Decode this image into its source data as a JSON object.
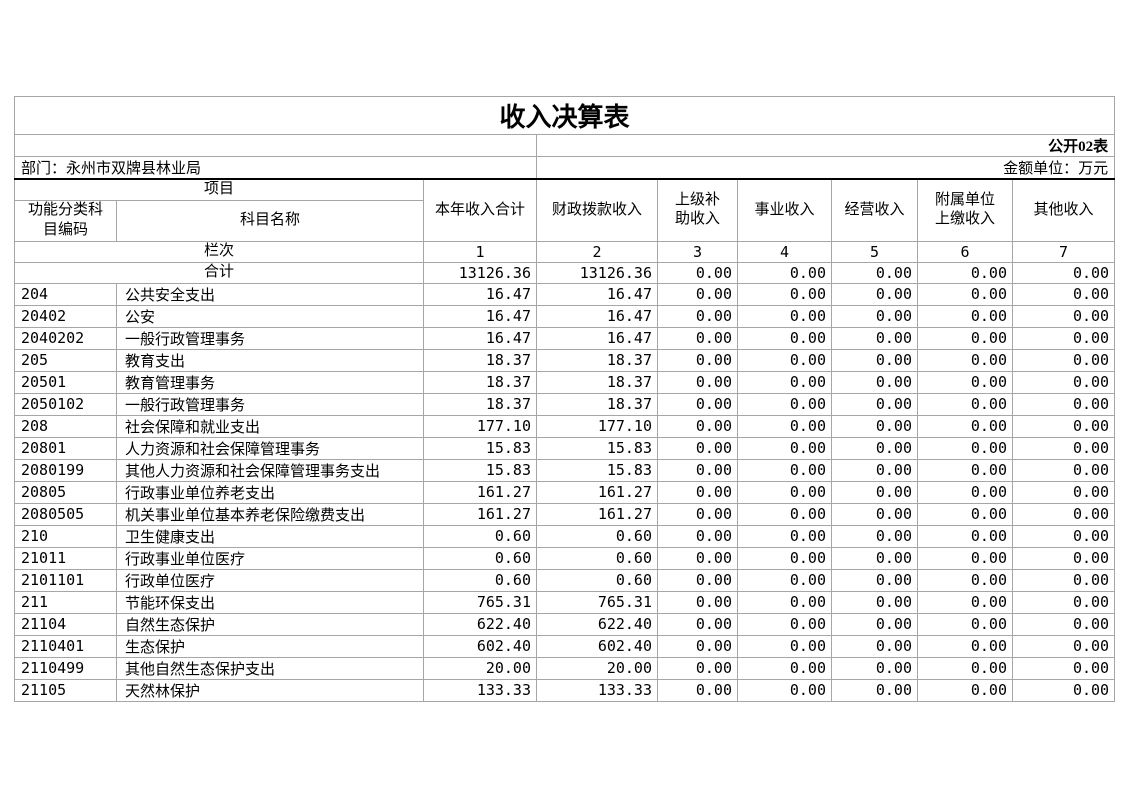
{
  "page": {
    "title": "收入决算表",
    "form_label": "公开02表",
    "department": "部门：永州市双牌县林业局",
    "unit": "金额单位：万元"
  },
  "colors": {
    "grid_line": "#a6a6a6",
    "section_divider": "#000000",
    "text": "#000000",
    "background": "#ffffff"
  },
  "table": {
    "header": {
      "project": "项目",
      "code": "功能分类科\n目编码",
      "subject": "科目名称",
      "columns": [
        "本年收入合计",
        "财政拨款收入",
        "上级补\n助收入",
        "事业收入",
        "经营收入",
        "附属单位\n上缴收入",
        "其他收入"
      ],
      "rank_label": "栏次",
      "rank_numbers": [
        "1",
        "2",
        "3",
        "4",
        "5",
        "6",
        "7"
      ]
    },
    "total": {
      "label": "合计",
      "values": [
        "13126.36",
        "13126.36",
        "0.00",
        "0.00",
        "0.00",
        "0.00",
        "0.00"
      ]
    },
    "rows": [
      {
        "code": "204",
        "name": "公共安全支出",
        "values": [
          "16.47",
          "16.47",
          "0.00",
          "0.00",
          "0.00",
          "0.00",
          "0.00"
        ]
      },
      {
        "code": "20402",
        "name": "公安",
        "values": [
          "16.47",
          "16.47",
          "0.00",
          "0.00",
          "0.00",
          "0.00",
          "0.00"
        ]
      },
      {
        "code": "2040202",
        "name": "一般行政管理事务",
        "values": [
          "16.47",
          "16.47",
          "0.00",
          "0.00",
          "0.00",
          "0.00",
          "0.00"
        ]
      },
      {
        "code": "205",
        "name": "教育支出",
        "values": [
          "18.37",
          "18.37",
          "0.00",
          "0.00",
          "0.00",
          "0.00",
          "0.00"
        ]
      },
      {
        "code": "20501",
        "name": "教育管理事务",
        "values": [
          "18.37",
          "18.37",
          "0.00",
          "0.00",
          "0.00",
          "0.00",
          "0.00"
        ]
      },
      {
        "code": "2050102",
        "name": "一般行政管理事务",
        "values": [
          "18.37",
          "18.37",
          "0.00",
          "0.00",
          "0.00",
          "0.00",
          "0.00"
        ]
      },
      {
        "code": "208",
        "name": "社会保障和就业支出",
        "values": [
          "177.10",
          "177.10",
          "0.00",
          "0.00",
          "0.00",
          "0.00",
          "0.00"
        ]
      },
      {
        "code": "20801",
        "name": "人力资源和社会保障管理事务",
        "values": [
          "15.83",
          "15.83",
          "0.00",
          "0.00",
          "0.00",
          "0.00",
          "0.00"
        ]
      },
      {
        "code": "2080199",
        "name": "其他人力资源和社会保障管理事务支出",
        "values": [
          "15.83",
          "15.83",
          "0.00",
          "0.00",
          "0.00",
          "0.00",
          "0.00"
        ]
      },
      {
        "code": "20805",
        "name": "行政事业单位养老支出",
        "values": [
          "161.27",
          "161.27",
          "0.00",
          "0.00",
          "0.00",
          "0.00",
          "0.00"
        ]
      },
      {
        "code": "2080505",
        "name": "机关事业单位基本养老保险缴费支出",
        "values": [
          "161.27",
          "161.27",
          "0.00",
          "0.00",
          "0.00",
          "0.00",
          "0.00"
        ]
      },
      {
        "code": "210",
        "name": "卫生健康支出",
        "values": [
          "0.60",
          "0.60",
          "0.00",
          "0.00",
          "0.00",
          "0.00",
          "0.00"
        ]
      },
      {
        "code": "21011",
        "name": "行政事业单位医疗",
        "values": [
          "0.60",
          "0.60",
          "0.00",
          "0.00",
          "0.00",
          "0.00",
          "0.00"
        ]
      },
      {
        "code": "2101101",
        "name": "行政单位医疗",
        "values": [
          "0.60",
          "0.60",
          "0.00",
          "0.00",
          "0.00",
          "0.00",
          "0.00"
        ]
      },
      {
        "code": "211",
        "name": "节能环保支出",
        "values": [
          "765.31",
          "765.31",
          "0.00",
          "0.00",
          "0.00",
          "0.00",
          "0.00"
        ]
      },
      {
        "code": "21104",
        "name": "自然生态保护",
        "values": [
          "622.40",
          "622.40",
          "0.00",
          "0.00",
          "0.00",
          "0.00",
          "0.00"
        ]
      },
      {
        "code": "2110401",
        "name": "生态保护",
        "values": [
          "602.40",
          "602.40",
          "0.00",
          "0.00",
          "0.00",
          "0.00",
          "0.00"
        ]
      },
      {
        "code": "2110499",
        "name": "其他自然生态保护支出",
        "values": [
          "20.00",
          "20.00",
          "0.00",
          "0.00",
          "0.00",
          "0.00",
          "0.00"
        ]
      },
      {
        "code": "21105",
        "name": "天然林保护",
        "values": [
          "133.33",
          "133.33",
          "0.00",
          "0.00",
          "0.00",
          "0.00",
          "0.00"
        ]
      }
    ]
  }
}
